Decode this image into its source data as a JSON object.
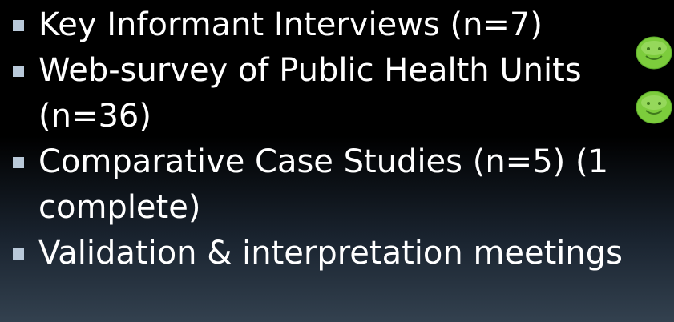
{
  "bullets": [
    {
      "text": "Key Informant Interviews (n=7)"
    },
    {
      "text": "Web-survey of Public Health Units (n=36)"
    },
    {
      "text": "Comparative Case Studies (n=5) (1 complete)"
    },
    {
      "text": "Validation & interpretation meetings"
    }
  ]
}
